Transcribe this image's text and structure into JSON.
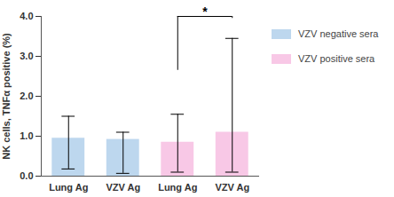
{
  "chart_data": {
    "type": "bar",
    "y_label": "NK cells, TNFα positive (%)",
    "categories": [
      "Lung Ag",
      "VZV Ag",
      "Lung Ag",
      "VZV Ag"
    ],
    "series": [
      {
        "name": "VZV negative sera",
        "color": "#bdd7ee",
        "values": [
          0.95,
          0.92,
          null,
          null
        ],
        "error_low": [
          0.18,
          0.07,
          null,
          null
        ],
        "error_high": [
          1.5,
          1.1,
          null,
          null
        ]
      },
      {
        "name": "VZV positive sera",
        "color": "#f8c8e6",
        "values": [
          null,
          null,
          0.85,
          1.1
        ],
        "error_low": [
          null,
          null,
          0.1,
          0.1
        ],
        "error_high": [
          null,
          null,
          1.55,
          3.45
        ]
      }
    ],
    "annotations": [
      {
        "text": "*",
        "from": 2,
        "to": 3,
        "y": 4,
        "left_end": 2.65,
        "right_end": 3.95
      }
    ],
    "ylim": [
      0,
      4
    ],
    "yticks": [
      0,
      1,
      2,
      3,
      4
    ],
    "grid": false,
    "legend": "right"
  }
}
